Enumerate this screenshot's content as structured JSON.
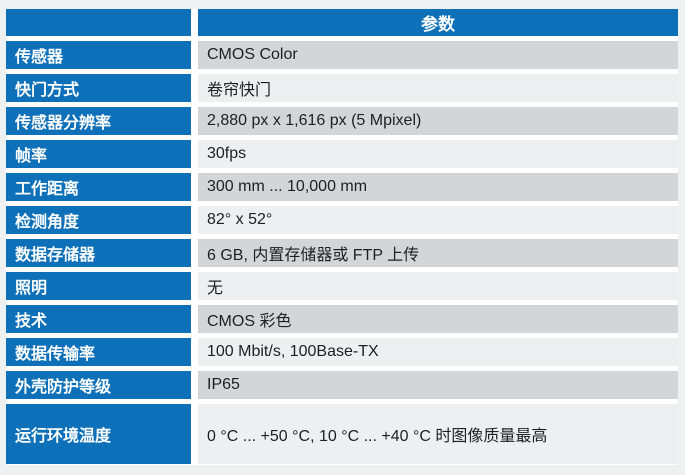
{
  "table": {
    "header": {
      "param_label": "参数"
    },
    "rows": [
      {
        "label": "传感器",
        "value": "CMOS Color"
      },
      {
        "label": "快门方式",
        "value": "卷帘快门"
      },
      {
        "label": "传感器分辨率",
        "value": "2,880 px x 1,616 px (5 Mpixel)"
      },
      {
        "label": "帧率",
        "value": "30fps"
      },
      {
        "label": "工作距离",
        "value": "300 mm ... 10,000 mm"
      },
      {
        "label": "检测角度",
        "value": "82° x 52°"
      },
      {
        "label": "数据存储器",
        "value": "6 GB, 内置存储器或 FTP 上传"
      },
      {
        "label": "照明",
        "value": "无"
      },
      {
        "label": "技术",
        "value": "CMOS 彩色"
      },
      {
        "label": "数据传输率",
        "value": "100 Mbit/s, 100Base-TX"
      },
      {
        "label": "外壳防护等级",
        "value": "IP65"
      },
      {
        "label": "运行环境温度",
        "value": "0 °C ... +50 °C, 10 °C ... +40 °C 时图像质量最高"
      }
    ]
  },
  "colors": {
    "accent_blue": "#0d70b8",
    "row_gray": "#d2d6d9",
    "row_light": "#edf0f1",
    "page_bg": "#eef1f2",
    "gap_white": "#ffffff",
    "value_text": "#1d2022",
    "header_text": "#ffffff"
  }
}
